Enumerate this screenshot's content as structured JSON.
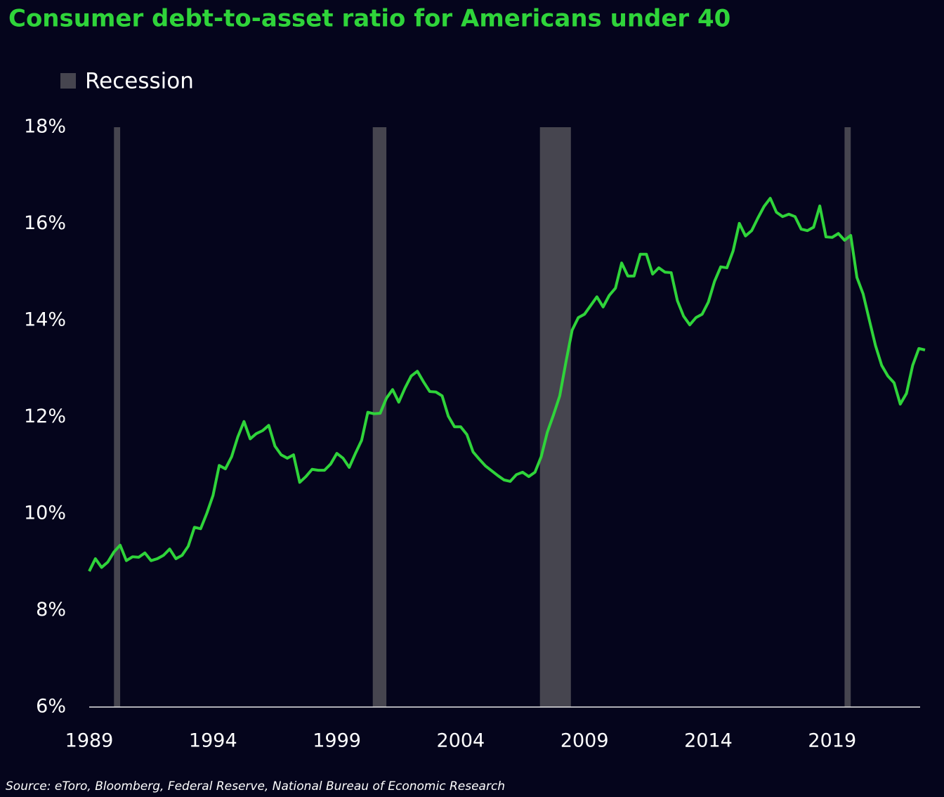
{
  "chart_data": {
    "type": "line",
    "title": "Consumer debt-to-asset ratio for Americans under 40",
    "source": "Source: eToro, Bloomberg, Federal Reserve, National Bureau of Economic Research",
    "recession_label": "Recession",
    "recession_color": "#46454f",
    "recessions": [
      {
        "start": 1990.0,
        "end": 1990.25
      },
      {
        "start": 2000.45,
        "end": 2001.0
      },
      {
        "start": 2007.2,
        "end": 2008.45
      },
      {
        "start": 2019.5,
        "end": 2019.75
      }
    ],
    "color": "#2fd43a",
    "x": [
      1989.0,
      1989.25,
      1989.5,
      1989.75,
      1990.0,
      1990.25,
      1990.5,
      1990.75,
      1991.0,
      1991.25,
      1991.5,
      1991.75,
      1992.0,
      1992.25,
      1992.5,
      1992.75,
      1993.0,
      1993.25,
      1993.5,
      1993.75,
      1994.0,
      1994.25,
      1994.5,
      1994.75,
      1995.0,
      1995.25,
      1995.5,
      1995.75,
      1996.0,
      1996.25,
      1996.5,
      1996.75,
      1997.0,
      1997.25,
      1997.5,
      1997.75,
      1998.0,
      1998.25,
      1998.5,
      1998.75,
      1999.0,
      1999.25,
      1999.5,
      1999.75,
      2000.0,
      2000.25,
      2000.5,
      2000.75,
      2001.0,
      2001.25,
      2001.5,
      2001.75,
      2002.0,
      2002.25,
      2002.5,
      2002.75,
      2003.0,
      2003.25,
      2003.5,
      2003.75,
      2004.0,
      2004.25,
      2004.5,
      2004.75,
      2005.0,
      2005.25,
      2005.5,
      2005.75,
      2006.0,
      2006.25,
      2006.5,
      2006.75,
      2007.0,
      2007.25,
      2007.5,
      2007.75,
      2008.0,
      2008.25,
      2008.5,
      2008.75,
      2009.0,
      2009.25,
      2009.5,
      2009.75,
      2010.0,
      2010.25,
      2010.5,
      2010.75,
      2011.0,
      2011.25,
      2011.5,
      2011.75,
      2012.0,
      2012.25,
      2012.5,
      2012.75,
      2013.0,
      2013.25,
      2013.5,
      2013.75,
      2014.0,
      2014.25,
      2014.5,
      2014.75,
      2015.0,
      2015.25,
      2015.5,
      2015.75,
      2016.0,
      2016.25,
      2016.5,
      2016.75,
      2017.0,
      2017.25,
      2017.5,
      2017.75,
      2018.0,
      2018.25,
      2018.5,
      2018.75,
      2019.0,
      2019.25,
      2019.5,
      2019.75,
      2020.0,
      2020.25,
      2020.5,
      2020.75,
      2021.0,
      2021.25,
      2021.5,
      2021.75,
      2022.0,
      2022.25,
      2022.5,
      2022.75
    ],
    "values": [
      8.81,
      9.07,
      8.89,
      9.0,
      9.21,
      9.35,
      9.03,
      9.11,
      9.1,
      9.19,
      9.03,
      9.07,
      9.14,
      9.27,
      9.07,
      9.14,
      9.33,
      9.72,
      9.69,
      10.01,
      10.38,
      11.0,
      10.93,
      11.18,
      11.59,
      11.91,
      11.55,
      11.66,
      11.72,
      11.83,
      11.4,
      11.22,
      11.15,
      11.22,
      10.65,
      10.77,
      10.92,
      10.9,
      10.9,
      11.03,
      11.25,
      11.15,
      10.96,
      11.25,
      11.52,
      12.1,
      12.07,
      12.08,
      12.39,
      12.57,
      12.31,
      12.6,
      12.85,
      12.95,
      12.73,
      12.53,
      12.52,
      12.44,
      12.02,
      11.8,
      11.8,
      11.64,
      11.28,
      11.13,
      10.99,
      10.89,
      10.79,
      10.7,
      10.67,
      10.81,
      10.86,
      10.77,
      10.86,
      11.18,
      11.69,
      12.05,
      12.44,
      13.14,
      13.8,
      14.06,
      14.13,
      14.31,
      14.49,
      14.28,
      14.52,
      14.67,
      15.19,
      14.92,
      14.92,
      15.37,
      15.37,
      14.96,
      15.09,
      15.0,
      14.99,
      14.41,
      14.09,
      13.91,
      14.06,
      14.13,
      14.38,
      14.81,
      15.11,
      15.09,
      15.44,
      16.01,
      15.75,
      15.86,
      16.12,
      16.36,
      16.53,
      16.24,
      16.15,
      16.2,
      16.15,
      15.89,
      15.86,
      15.93,
      16.37,
      15.73,
      15.72,
      15.8,
      15.66,
      15.76,
      14.89,
      14.55,
      14.01,
      13.48,
      13.07,
      12.85,
      12.71,
      12.27,
      12.49,
      13.07,
      13.42,
      13.39
    ],
    "xlim": [
      1989,
      2022.75
    ],
    "xticks": [
      1989,
      1994,
      1999,
      2004,
      2009,
      2014,
      2019
    ],
    "ylim": [
      6,
      18
    ],
    "yticks": [
      {
        "value": 6,
        "label": "6%"
      },
      {
        "value": 8,
        "label": "8%"
      },
      {
        "value": 10,
        "label": "10%"
      },
      {
        "value": 12,
        "label": "12%"
      },
      {
        "value": 14,
        "label": "14%"
      },
      {
        "value": 16,
        "label": "16%"
      },
      {
        "value": 18,
        "label": "18%"
      }
    ]
  }
}
